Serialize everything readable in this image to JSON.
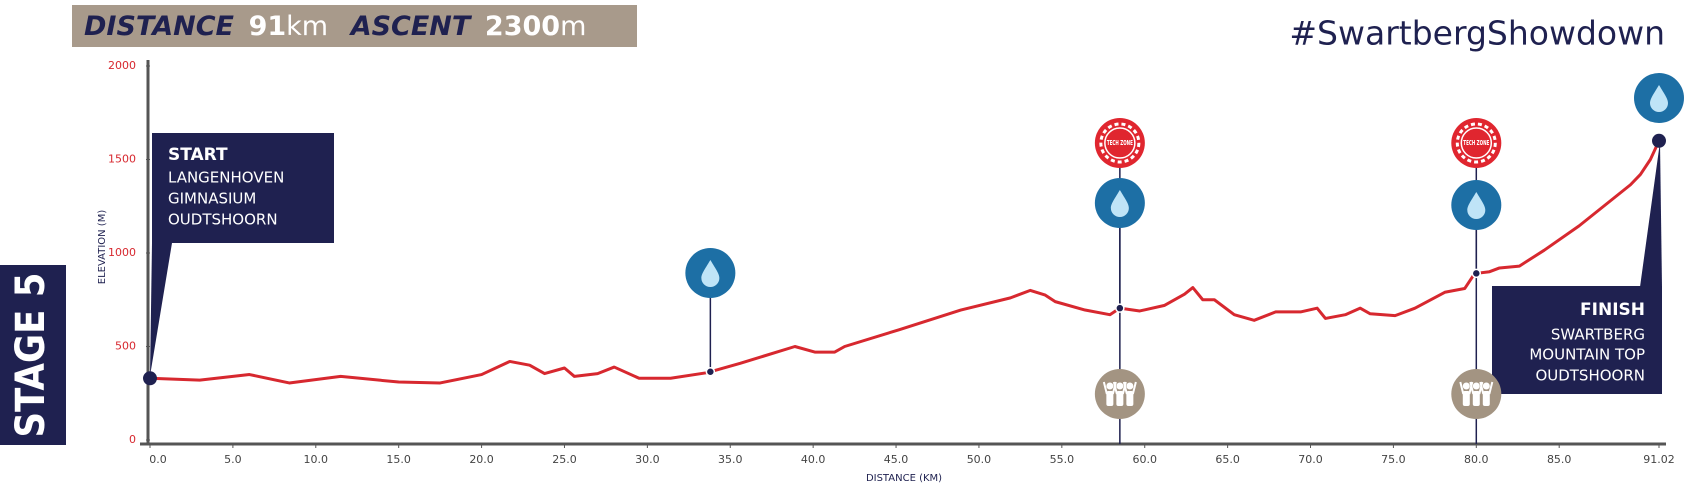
{
  "header": {
    "distance_label": "DISTANCE",
    "distance": 91,
    "distance_unit": "km",
    "ascent_label": "ASCENT",
    "ascent": 2300,
    "ascent_unit": "m",
    "hashtag": "#SwartbergShowdown",
    "stage": "STAGE 5"
  },
  "start": {
    "title": "START",
    "lines": [
      "LANGENHOVEN",
      "GIMNASIUM",
      "OUDTSHOORN"
    ]
  },
  "finish": {
    "title": "FINISH",
    "lines": [
      "SWARTBERG",
      "MOUNTAIN TOP",
      "OUDTSHOORN"
    ]
  },
  "chart_data": {
    "type": "line",
    "x_label": "DISTANCE (KM)",
    "y_label": "ELEVATION (M)",
    "x": [
      0,
      3,
      6,
      8.4,
      11.5,
      15,
      17.5,
      20,
      21.7,
      22.9,
      23.8,
      25,
      25.6,
      27,
      28,
      29.5,
      31.4,
      33.6,
      35.6,
      38.9,
      40.1,
      41.3,
      41.9,
      45.2,
      48.9,
      51.9,
      53.1,
      54,
      54.6,
      56.4,
      57.9,
      58.5,
      59.7,
      61.2,
      62.4,
      62.9,
      63.5,
      64.2,
      65.4,
      66.6,
      67.9,
      69.4,
      70.4,
      70.9,
      72.1,
      73,
      73.6,
      75.1,
      76.3,
      78.1,
      79.3,
      79.9,
      80.8,
      81.4,
      82.6,
      84.1,
      86.2,
      89.3,
      89.9,
      90.5,
      91.02
    ],
    "series": [
      {
        "color": "#d7282f",
        "values": [
          330,
          320,
          350,
          305,
          340,
          310,
          305,
          350,
          420,
          400,
          355,
          385,
          340,
          355,
          390,
          330,
          330,
          360,
          410,
          500,
          470,
          470,
          500,
          590,
          695,
          760,
          800,
          775,
          740,
          695,
          670,
          705,
          690,
          720,
          780,
          815,
          750,
          750,
          670,
          640,
          685,
          685,
          705,
          650,
          670,
          705,
          675,
          665,
          705,
          790,
          810,
          890,
          900,
          920,
          930,
          1015,
          1145,
          1365,
          1420,
          1500,
          1600
        ]
      }
    ],
    "xlim": [
      0,
      91.02
    ],
    "xticks": [
      {
        "value": 0,
        "label": "0.0"
      },
      {
        "value": 5,
        "label": "5.0"
      },
      {
        "value": 10,
        "label": "10.0"
      },
      {
        "value": 15,
        "label": "15.0"
      },
      {
        "value": 20,
        "label": "20.0"
      },
      {
        "value": 25,
        "label": "25.0"
      },
      {
        "value": 30,
        "label": "30.0"
      },
      {
        "value": 35,
        "label": "35.0"
      },
      {
        "value": 40,
        "label": "40.0"
      },
      {
        "value": 45,
        "label": "45.0"
      },
      {
        "value": 50,
        "label": "50.0"
      },
      {
        "value": 55,
        "label": "55.0"
      },
      {
        "value": 60,
        "label": "60.0"
      },
      {
        "value": 65,
        "label": "65.0"
      },
      {
        "value": 70,
        "label": "70.0"
      },
      {
        "value": 75,
        "label": "75.0"
      },
      {
        "value": 80,
        "label": "80.0"
      },
      {
        "value": 85,
        "label": "85.0"
      },
      91.02
    ],
    "ylim": [
      0,
      2000
    ],
    "yticks": [
      0,
      500,
      1000,
      1500,
      2000
    ],
    "water_points": [
      33.8,
      58.5,
      80,
      91.02
    ],
    "tech_zones": [
      58.5,
      80
    ],
    "tech_zone_label": "TECH ZONE",
    "spectator_points": [
      58.5,
      80
    ]
  }
}
